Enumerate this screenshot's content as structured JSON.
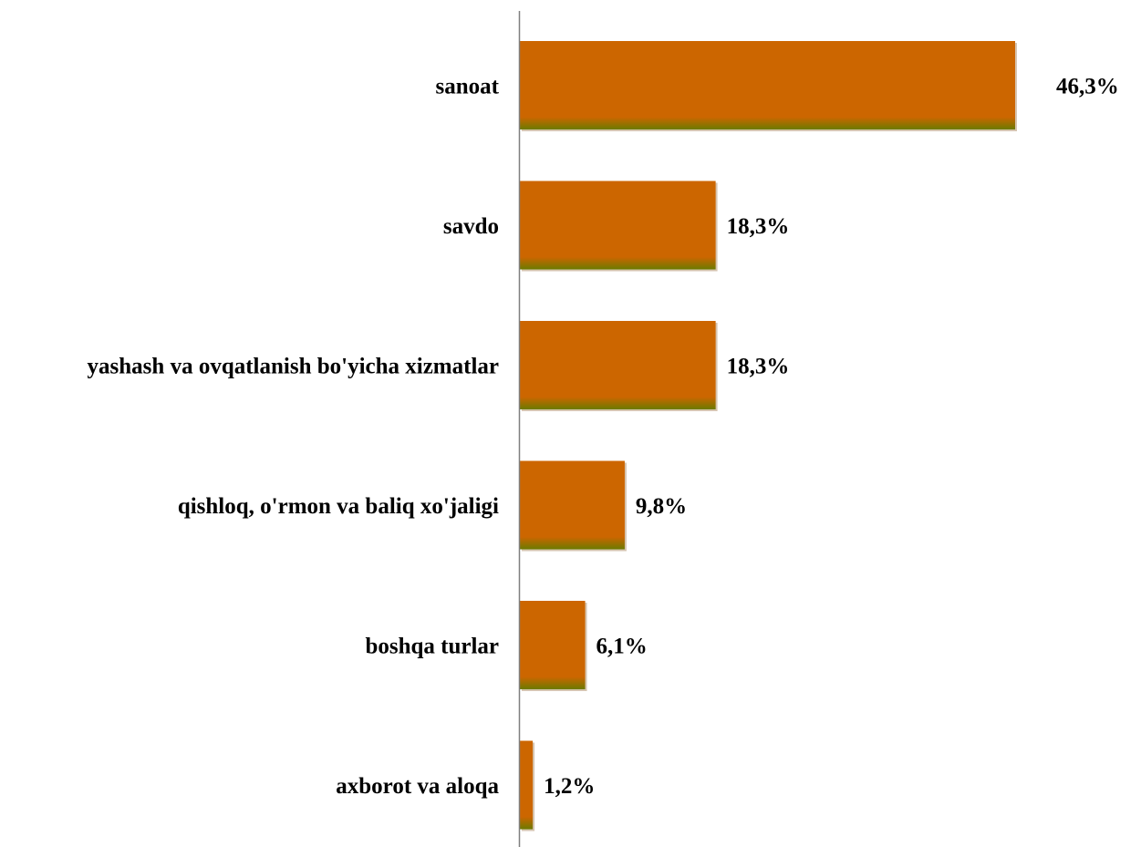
{
  "chart_data": {
    "type": "bar",
    "orientation": "horizontal",
    "title": "",
    "xlabel": "",
    "ylabel": "",
    "categories": [
      "sanoat",
      "savdo",
      "yashash va ovqatlanish bo'yicha xizmatlar",
      "qishloq, o'rmon va baliq xo'jaligi",
      "boshqa turlar",
      "axborot va aloqa"
    ],
    "values": [
      46.3,
      18.3,
      18.3,
      9.8,
      6.1,
      1.2
    ],
    "value_labels": [
      "46,3%",
      "18,3%",
      "18,3%",
      "9,8%",
      "6,1%",
      "1,2%"
    ],
    "unit": "%",
    "grid": false,
    "legend": "none",
    "colors": {
      "bar": "#cc6600",
      "bar_bottom": "#6b7a00",
      "axis": "#808080"
    }
  }
}
